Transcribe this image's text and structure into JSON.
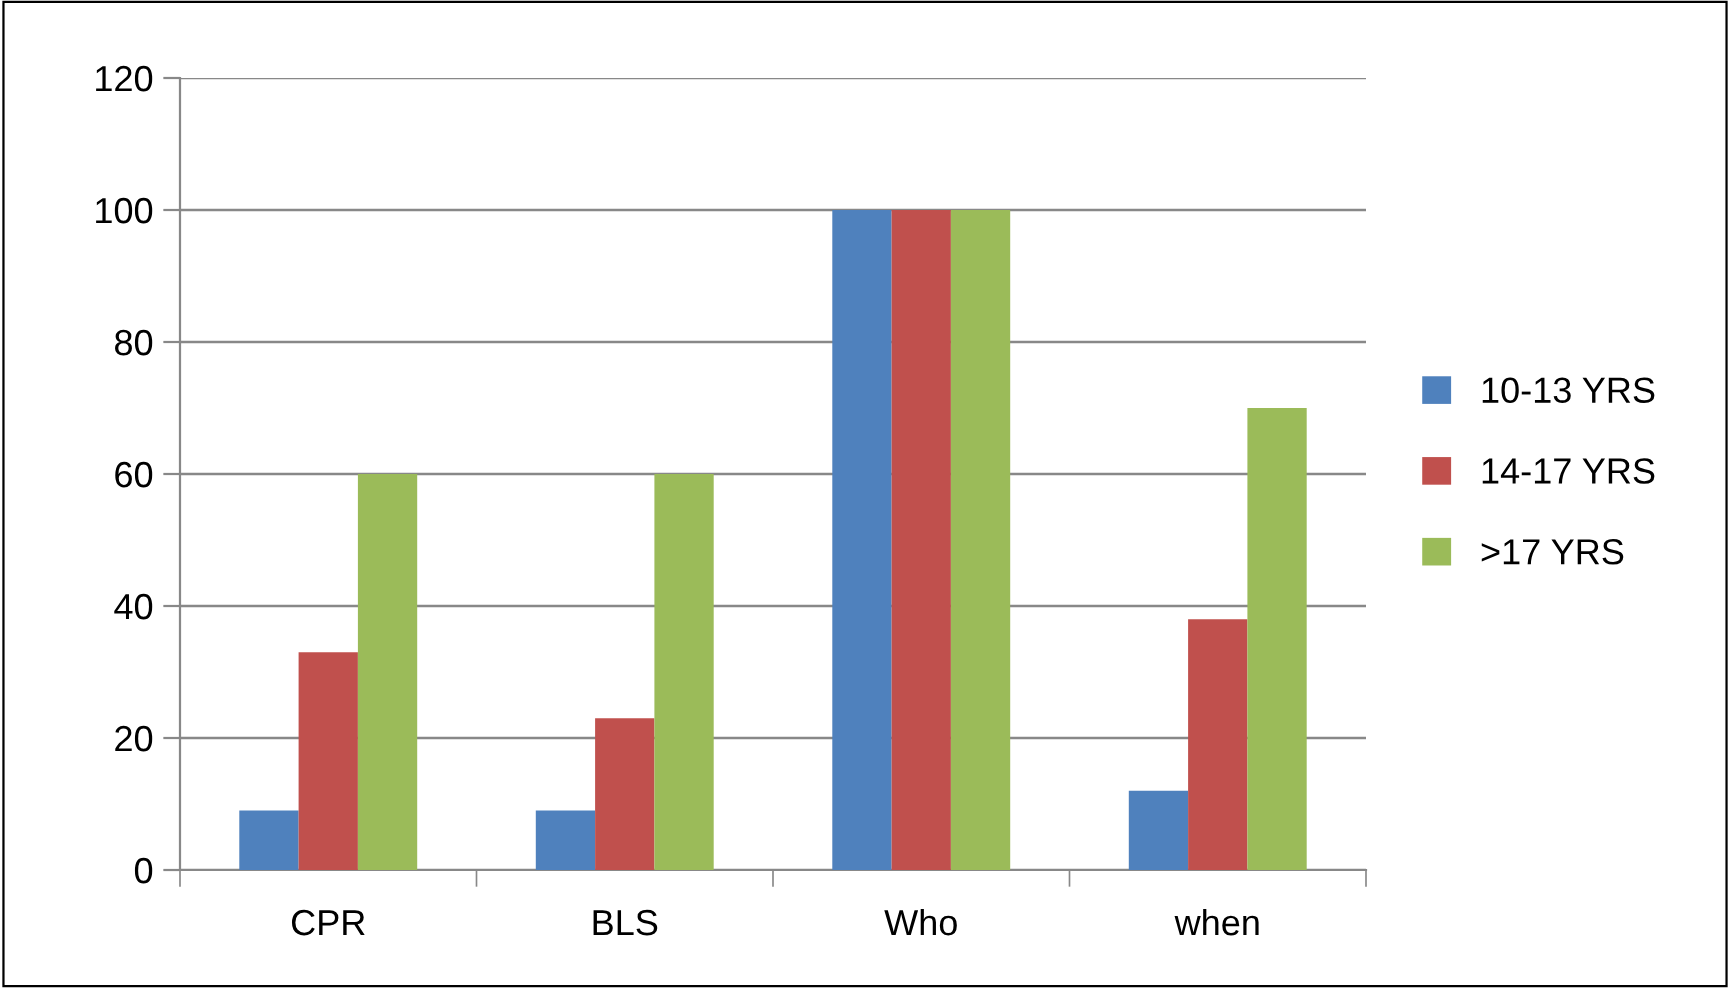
{
  "chart_data": {
    "type": "bar",
    "categories": [
      "CPR",
      "BLS",
      "Who",
      "when"
    ],
    "series": [
      {
        "name": "10-13 YRS",
        "color": "#4f81bd",
        "values": [
          9,
          9,
          100,
          12
        ]
      },
      {
        "name": "14-17 YRS",
        "color": "#c0504d",
        "values": [
          33,
          23,
          100,
          38
        ]
      },
      {
        "name": ">17 YRS",
        "color": "#9bbb59",
        "values": [
          60,
          60,
          100,
          70
        ]
      }
    ],
    "ylim": [
      0,
      120
    ],
    "yticks": [
      0,
      20,
      40,
      60,
      80,
      100,
      120
    ],
    "grid": "y",
    "legend": "right"
  }
}
